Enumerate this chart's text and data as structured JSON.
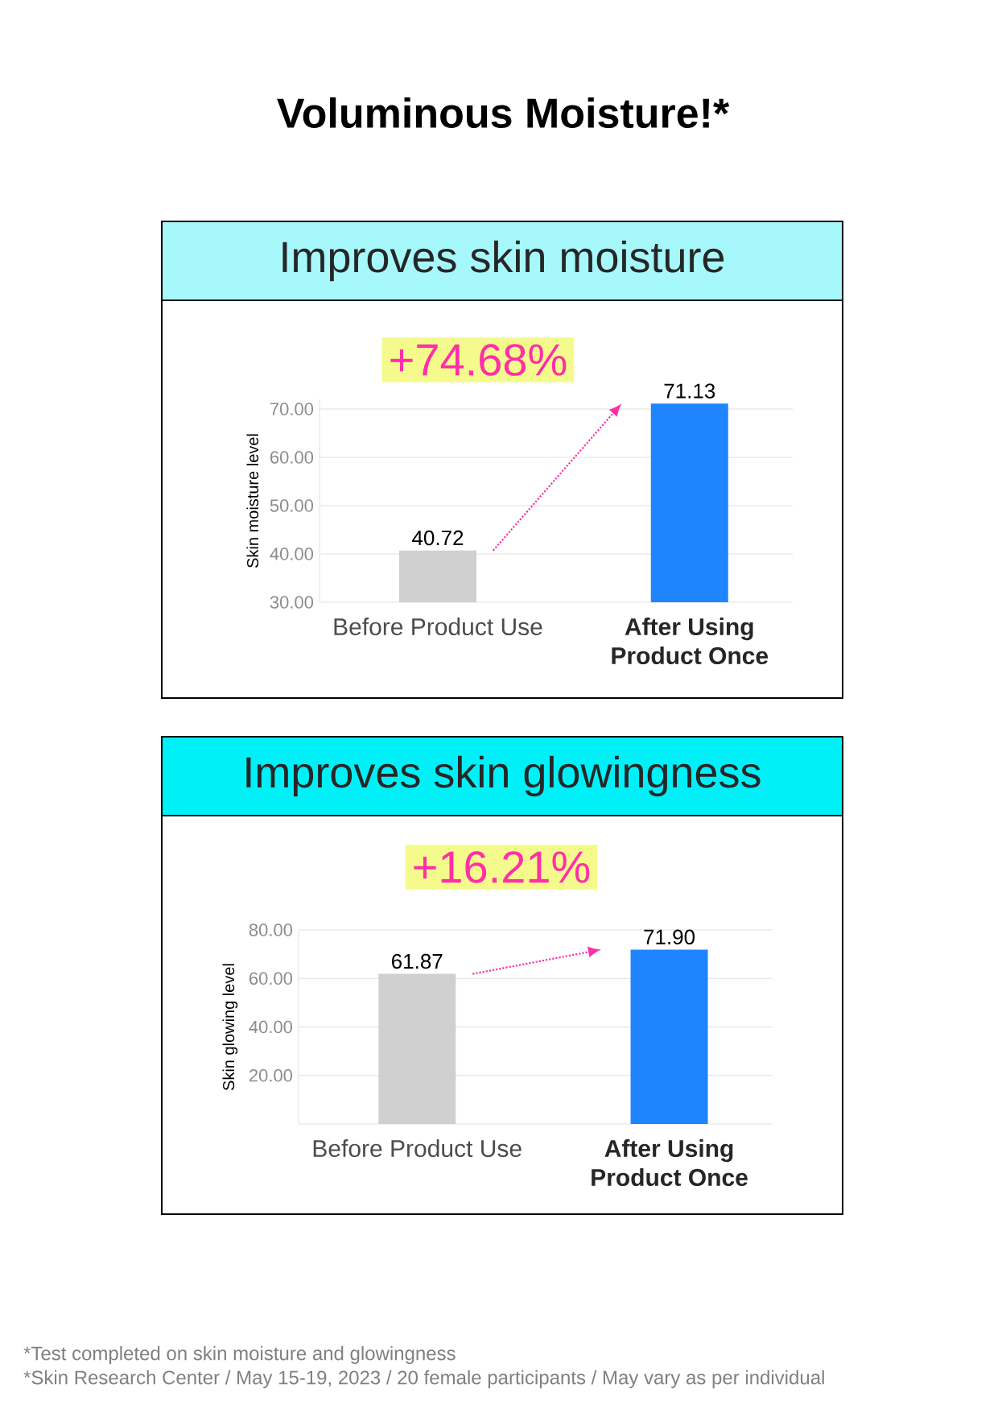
{
  "chart_data": [
    {
      "type": "bar",
      "title": "Improves skin moisture",
      "ylabel": "Skin moisture level",
      "categories": [
        "Before Product Use",
        "After Using Product Once"
      ],
      "values": [
        40.72,
        71.13
      ],
      "value_labels": [
        "40.72",
        "71.13"
      ],
      "colors": [
        "#d0d0d0",
        "#1e85ff"
      ],
      "ylim": [
        30,
        72
      ],
      "yticks": [
        {
          "value": 30,
          "label": "30.00"
        },
        {
          "value": 40,
          "label": "40.00"
        },
        {
          "value": 50,
          "label": "50.00"
        },
        {
          "value": 60,
          "label": "60.00"
        },
        {
          "value": 70,
          "label": "70.00"
        }
      ],
      "grid": "y",
      "annotations": [
        "Voluminous Moisture!*",
        "+74.68%"
      ]
    },
    {
      "type": "bar",
      "title": "Improves skin glowingness",
      "ylabel": "Skin glowing level",
      "categories": [
        "Before Product Use",
        "After Using Product Once"
      ],
      "values": [
        61.87,
        71.9
      ],
      "value_labels": [
        "61.87",
        "71.90"
      ],
      "colors": [
        "#d0d0d0",
        "#1e85ff"
      ],
      "ylim": [
        0,
        80
      ],
      "yticks": [
        {
          "value": 0,
          "label": null
        },
        {
          "value": 20,
          "label": "20.00"
        },
        {
          "value": 40,
          "label": "40.00"
        },
        {
          "value": 60,
          "label": "60.00"
        },
        {
          "value": 80,
          "label": "80.00"
        }
      ],
      "grid": "y",
      "annotations": [
        "+16.21%",
        "*Test completed on skin moisture and glowingness",
        "*Skin Research Center / May 15-19, 2023 / 20 female participants / May vary as per individual"
      ]
    }
  ]
}
